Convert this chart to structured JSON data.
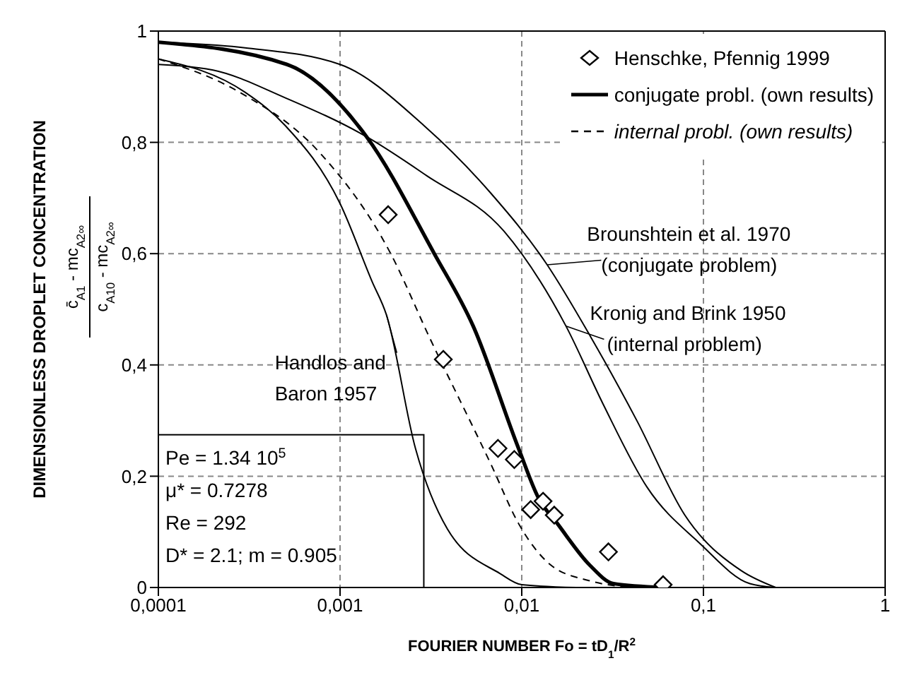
{
  "chart_data": {
    "type": "line",
    "xlabel": "FOURIER NUMBER Fo = tD$_{1}$/R$^{2}$",
    "ylabel": "DIMENSIONLESS DROPLET CONCENTRATION",
    "log": "x",
    "xlim": [
      0.0001,
      1
    ],
    "ylim": [
      0,
      1
    ],
    "xticks": [
      {
        "value": 0.0001,
        "label": "0,0001"
      },
      {
        "value": 0.001,
        "label": "0,001"
      },
      {
        "value": 0.01,
        "label": "0,01"
      },
      {
        "value": 0.1,
        "label": "0,1"
      },
      1
    ],
    "yticks": [
      0,
      {
        "value": 0.2,
        "label": "0,2"
      },
      {
        "value": 0.4,
        "label": "0,4"
      },
      {
        "value": 0.6,
        "label": "0,6"
      },
      {
        "value": 0.8,
        "label": "0,8"
      },
      1
    ],
    "grid": true,
    "legend": "top right",
    "annotations": [
      "c̄$_{A1}$ - mc$_{A2∞}$",
      "c$_{A10}$ - mc$_{A2∞}$",
      "Pe = 1.34 10$^{5}$",
      "μ* = 0.7278",
      "Re = 292",
      "D* = 2.1; m = 0.905"
    ],
    "series": [
      {
        "name": "Henschke, Pfennig 1999",
        "type": "scatter",
        "marker": "diamond",
        "color": "#000000",
        "x": [
          0.00184,
          0.0037,
          0.0074,
          0.0091,
          0.0112,
          0.0131,
          0.0151,
          0.03,
          0.06
        ],
        "values": [
          0.67,
          0.41,
          0.25,
          0.23,
          0.14,
          0.155,
          0.13,
          0.064,
          0.005
        ]
      },
      {
        "name": "conjugate probl. (own results)",
        "type": "line",
        "line_style": "solid",
        "marker": "none",
        "color": "#000000",
        "x": [
          0.0001,
          0.00051,
          0.0014,
          0.0033,
          0.0054,
          0.0096,
          0.0124,
          0.0157,
          0.0237,
          0.032,
          0.06
        ],
        "values": [
          0.98,
          0.94,
          0.81,
          0.6,
          0.47,
          0.25,
          0.16,
          0.115,
          0.04,
          0.007,
          0
        ]
      },
      {
        "name": "internal probl. (own results)",
        "type": "line",
        "line_style": "dashed",
        "marker": "none",
        "color": "#000000",
        "x": [
          0.0001,
          0.00028,
          0.00078,
          0.0019,
          0.0031,
          0.0068,
          0.0096,
          0.0145,
          0.0237,
          0.04
        ],
        "values": [
          0.95,
          0.89,
          0.78,
          0.6,
          0.45,
          0.22,
          0.115,
          0.04,
          0.012,
          0
        ]
      },
      {
        "name": "Brounshtein et al. 1970 (conjugate problem)",
        "type": "line",
        "line_style": "solid",
        "marker": "none",
        "color": "#000000",
        "x": [
          0.0001,
          0.0003,
          0.001,
          0.0029,
          0.0067,
          0.0138,
          0.024,
          0.043,
          0.079,
          0.162,
          0.25
        ],
        "values": [
          0.98,
          0.97,
          0.94,
          0.83,
          0.71,
          0.58,
          0.45,
          0.3,
          0.13,
          0.03,
          0
        ]
      },
      {
        "name": "Kronig and Brink 1950 (internal problem)",
        "type": "line",
        "line_style": "solid",
        "marker": "none",
        "color": "#000000",
        "x": [
          0.0001,
          0.0002,
          0.0005,
          0.0014,
          0.003,
          0.008,
          0.0175,
          0.028,
          0.049,
          0.095,
          0.18,
          0.25
        ],
        "values": [
          0.94,
          0.93,
          0.88,
          0.81,
          0.74,
          0.64,
          0.47,
          0.33,
          0.18,
          0.08,
          0.007,
          0
        ]
      },
      {
        "name": "Handlos and Baron 1957",
        "type": "line",
        "line_style": "solid",
        "marker": "none",
        "color": "#000000",
        "x": [
          0.0001,
          0.0003,
          0.0005,
          0.001,
          0.0015,
          0.0018,
          0.0026,
          0.0039,
          0.0076,
          0.01,
          0.02
        ],
        "values": [
          0.95,
          0.89,
          0.83,
          0.69,
          0.55,
          0.49,
          0.25,
          0.105,
          0.025,
          0.005,
          0
        ]
      }
    ]
  }
}
